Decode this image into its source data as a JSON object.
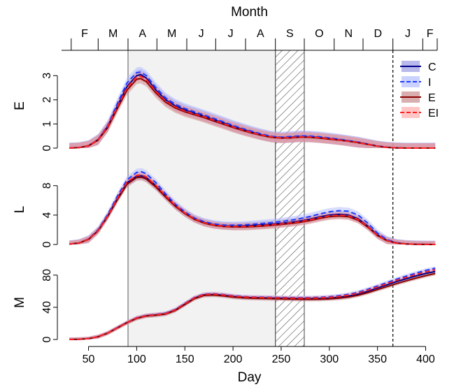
{
  "chart_data": {
    "type": "line",
    "top_axis": {
      "title": "Month",
      "months": [
        {
          "label": "F",
          "start": 32,
          "end": 60
        },
        {
          "label": "M",
          "start": 60,
          "end": 91
        },
        {
          "label": "A",
          "start": 91,
          "end": 121
        },
        {
          "label": "M",
          "start": 121,
          "end": 152
        },
        {
          "label": "J",
          "start": 152,
          "end": 182
        },
        {
          "label": "J",
          "start": 182,
          "end": 213
        },
        {
          "label": "A",
          "start": 213,
          "end": 244
        },
        {
          "label": "S",
          "start": 244,
          "end": 274
        },
        {
          "label": "O",
          "start": 274,
          "end": 305
        },
        {
          "label": "N",
          "start": 305,
          "end": 335
        },
        {
          "label": "D",
          "start": 335,
          "end": 366
        },
        {
          "label": "J",
          "start": 366,
          "end": 397
        },
        {
          "label": "F",
          "start": 397,
          "end": 425
        }
      ]
    },
    "xlabel": "Day",
    "xlim": [
      22,
      412
    ],
    "xticks": [
      50,
      100,
      150,
      200,
      250,
      300,
      350,
      400
    ],
    "shaded_region": [
      91,
      244
    ],
    "hatched_region": [
      244,
      274
    ],
    "dashed_vline": 366,
    "legend": {
      "position": "top-right",
      "entries": [
        {
          "label": "C",
          "color": "#00008B",
          "band": "#8A8AE0",
          "dash": false
        },
        {
          "label": "I",
          "color": "#1E3CFF",
          "band": "#AAB4FF",
          "dash": true
        },
        {
          "label": "E",
          "color": "#8B0000",
          "band": "#C07878",
          "dash": false
        },
        {
          "label": "EI",
          "color": "#FF2020",
          "band": "#FFA0A0",
          "dash": true
        }
      ]
    },
    "panels": [
      {
        "ylabel": "E",
        "ylim": [
          0,
          3.5
        ],
        "yticks": [
          0,
          1,
          2,
          3
        ],
        "x": [
          30,
          40,
          50,
          60,
          70,
          80,
          90,
          100,
          104,
          110,
          120,
          130,
          140,
          150,
          160,
          170,
          180,
          190,
          200,
          210,
          220,
          230,
          240,
          250,
          260,
          270,
          280,
          290,
          300,
          310,
          320,
          330,
          340,
          350,
          360,
          370,
          380,
          390,
          400,
          410
        ],
        "series": [
          {
            "name": "C",
            "band_width": 0.22,
            "values": [
              0.0,
              0.02,
              0.1,
              0.35,
              0.9,
              1.75,
              2.55,
              3.0,
              3.05,
              2.9,
              2.4,
              2.0,
              1.75,
              1.58,
              1.45,
              1.32,
              1.18,
              1.05,
              0.9,
              0.78,
              0.66,
              0.55,
              0.47,
              0.43,
              0.45,
              0.48,
              0.47,
              0.44,
              0.4,
              0.35,
              0.3,
              0.24,
              0.16,
              0.08,
              0.03,
              0.01,
              0.0,
              0.0,
              0.0,
              0.0
            ]
          },
          {
            "name": "I",
            "band_width": 0.22,
            "values": [
              0.0,
              0.02,
              0.1,
              0.36,
              0.95,
              1.85,
              2.7,
              3.12,
              3.15,
              3.0,
              2.5,
              2.08,
              1.82,
              1.64,
              1.5,
              1.37,
              1.23,
              1.09,
              0.94,
              0.81,
              0.69,
              0.58,
              0.49,
              0.45,
              0.48,
              0.51,
              0.5,
              0.47,
              0.42,
              0.37,
              0.31,
              0.25,
              0.17,
              0.09,
              0.04,
              0.01,
              0.0,
              0.0,
              0.0,
              0.0
            ]
          },
          {
            "name": "E",
            "band_width": 0.2,
            "values": [
              0.0,
              0.02,
              0.09,
              0.33,
              0.85,
              1.65,
              2.4,
              2.85,
              2.88,
              2.75,
              2.28,
              1.9,
              1.66,
              1.5,
              1.38,
              1.26,
              1.12,
              0.99,
              0.85,
              0.73,
              0.62,
              0.52,
              0.44,
              0.41,
              0.42,
              0.45,
              0.44,
              0.41,
              0.37,
              0.33,
              0.28,
              0.22,
              0.15,
              0.08,
              0.03,
              0.01,
              0.0,
              0.0,
              0.0,
              0.0
            ]
          },
          {
            "name": "EI",
            "band_width": 0.2,
            "values": [
              0.0,
              0.02,
              0.1,
              0.34,
              0.9,
              1.72,
              2.5,
              2.95,
              2.98,
              2.84,
              2.35,
              1.96,
              1.71,
              1.54,
              1.42,
              1.3,
              1.16,
              1.02,
              0.88,
              0.76,
              0.64,
              0.54,
              0.46,
              0.42,
              0.44,
              0.47,
              0.46,
              0.43,
              0.39,
              0.34,
              0.29,
              0.23,
              0.16,
              0.08,
              0.03,
              0.01,
              0.0,
              0.0,
              0.0,
              0.0
            ]
          }
        ]
      },
      {
        "ylabel": "L",
        "ylim": [
          0,
          9.5
        ],
        "yticks": [
          0,
          4,
          8
        ],
        "x": [
          30,
          40,
          50,
          60,
          70,
          80,
          90,
          100,
          105,
          110,
          120,
          130,
          140,
          150,
          160,
          170,
          180,
          190,
          200,
          210,
          220,
          230,
          240,
          250,
          260,
          270,
          280,
          290,
          300,
          310,
          320,
          330,
          340,
          350,
          360,
          370,
          380,
          390,
          400,
          410
        ],
        "series": [
          {
            "name": "C",
            "band_width": 0.5,
            "values": [
              0.05,
              0.2,
              0.7,
              1.9,
              3.9,
              6.3,
              8.4,
              9.3,
              9.35,
              9.1,
              8.0,
              6.6,
              5.3,
              4.3,
              3.5,
              3.0,
              2.7,
              2.55,
              2.5,
              2.52,
              2.58,
              2.66,
              2.76,
              2.88,
              3.02,
              3.2,
              3.45,
              3.75,
              4.0,
              4.1,
              4.0,
              3.5,
              2.5,
              1.3,
              0.55,
              0.2,
              0.08,
              0.03,
              0.01,
              0.0
            ]
          },
          {
            "name": "I",
            "band_width": 0.5,
            "values": [
              0.05,
              0.2,
              0.75,
              2.0,
              4.1,
              6.6,
              8.8,
              9.8,
              9.9,
              9.6,
              8.4,
              6.9,
              5.5,
              4.45,
              3.6,
              3.1,
              2.8,
              2.65,
              2.62,
              2.66,
              2.75,
              2.86,
              2.98,
              3.12,
              3.3,
              3.52,
              3.8,
              4.15,
              4.45,
              4.6,
              4.52,
              4.0,
              2.9,
              1.55,
              0.65,
              0.25,
              0.09,
              0.03,
              0.01,
              0.0
            ]
          },
          {
            "name": "E",
            "band_width": 0.45,
            "values": [
              0.05,
              0.2,
              0.68,
              1.85,
              3.8,
              6.1,
              8.2,
              9.1,
              9.15,
              8.9,
              7.8,
              6.45,
              5.2,
              4.2,
              3.4,
              2.9,
              2.6,
              2.45,
              2.38,
              2.38,
              2.42,
              2.5,
              2.6,
              2.72,
              2.86,
              3.02,
              3.25,
              3.55,
              3.78,
              3.88,
              3.78,
              3.3,
              2.35,
              1.2,
              0.5,
              0.18,
              0.07,
              0.02,
              0.01,
              0.0
            ]
          },
          {
            "name": "EI",
            "band_width": 0.45,
            "values": [
              0.05,
              0.2,
              0.7,
              1.9,
              3.9,
              6.3,
              8.5,
              9.4,
              9.45,
              9.2,
              8.05,
              6.65,
              5.35,
              4.3,
              3.48,
              2.96,
              2.66,
              2.5,
              2.44,
              2.45,
              2.5,
              2.58,
              2.68,
              2.8,
              2.95,
              3.12,
              3.36,
              3.66,
              3.9,
              4.0,
              3.9,
              3.4,
              2.45,
              1.25,
              0.52,
              0.19,
              0.07,
              0.02,
              0.01,
              0.0
            ]
          }
        ]
      },
      {
        "ylabel": "M",
        "ylim": [
          0,
          92
        ],
        "yticks": [
          0,
          40,
          80
        ],
        "x": [
          30,
          40,
          50,
          60,
          70,
          80,
          90,
          100,
          110,
          120,
          130,
          140,
          150,
          160,
          170,
          180,
          190,
          200,
          210,
          220,
          230,
          240,
          250,
          260,
          270,
          280,
          290,
          300,
          310,
          320,
          330,
          340,
          350,
          360,
          370,
          380,
          390,
          400,
          410
        ],
        "series": [
          {
            "name": "C",
            "band_width": 2.5,
            "values": [
              0.0,
              0.2,
              1.0,
              3.5,
              8.0,
              14.5,
              21.0,
              26.5,
              29.5,
              30.5,
              32.0,
              36.5,
              44.0,
              51.5,
              55.5,
              56.0,
              55.0,
              53.5,
              52.5,
              52.0,
              51.8,
              51.5,
              51.3,
              51.0,
              50.8,
              50.8,
              51.0,
              51.5,
              52.5,
              54.0,
              56.5,
              60.0,
              64.0,
              68.0,
              72.0,
              75.5,
              79.0,
              82.0,
              84.5
            ]
          },
          {
            "name": "I",
            "band_width": 2.5,
            "values": [
              0.0,
              0.2,
              1.0,
              3.6,
              8.2,
              14.8,
              21.3,
              27.0,
              30.0,
              31.0,
              32.6,
              37.2,
              44.8,
              52.2,
              56.3,
              56.8,
              55.8,
              54.3,
              53.3,
              52.8,
              52.6,
              52.4,
              52.2,
              52.0,
              51.9,
              52.0,
              52.4,
              53.1,
              54.3,
              56.1,
              58.8,
              62.4,
              66.5,
              70.8,
              75.0,
              78.8,
              82.5,
              85.8,
              88.5
            ]
          },
          {
            "name": "E",
            "band_width": 2.5,
            "values": [
              0.0,
              0.2,
              1.0,
              3.5,
              8.0,
              14.4,
              20.8,
              26.2,
              29.2,
              30.2,
              31.6,
              36.0,
              43.4,
              50.8,
              54.8,
              55.2,
              54.2,
              52.7,
              51.7,
              51.2,
              51.0,
              50.7,
              50.4,
              50.1,
              49.9,
              49.9,
              50.0,
              50.4,
              51.3,
              52.7,
              55.0,
              58.2,
              62.0,
              65.8,
              69.5,
              73.0,
              76.3,
              79.3,
              82.0
            ]
          },
          {
            "name": "EI",
            "band_width": 2.5,
            "values": [
              0.0,
              0.2,
              1.0,
              3.6,
              8.1,
              14.6,
              21.1,
              26.7,
              29.7,
              30.7,
              32.2,
              36.8,
              44.4,
              51.8,
              55.9,
              56.4,
              55.4,
              53.9,
              52.9,
              52.4,
              52.2,
              51.9,
              51.7,
              51.5,
              51.3,
              51.4,
              51.7,
              52.3,
              53.4,
              55.1,
              57.7,
              61.2,
              65.2,
              69.4,
              73.5,
              77.2,
              80.7,
              83.9,
              86.6
            ]
          }
        ]
      }
    ]
  }
}
